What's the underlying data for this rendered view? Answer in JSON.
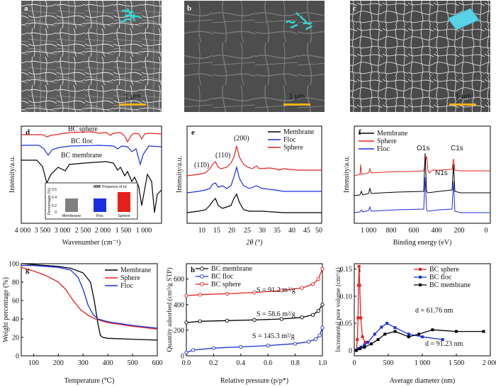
{
  "figure": {
    "panels": {
      "a": {
        "letter": "a",
        "scale_bar": "1 μm"
      },
      "b": {
        "letter": "b",
        "scale_bar": "1 μm"
      },
      "c": {
        "letter": "c",
        "scale_bar": "1 μm"
      }
    }
  },
  "chart_data": [
    {
      "panel": "d",
      "type": "line",
      "xlabel": "Wavenumber (cm⁻¹)",
      "ylabel": "Intensity/a.u.",
      "xlim": [
        4000,
        600
      ],
      "reversed_x": true,
      "x_ticks": [
        "4 000",
        "3 500",
        "3 000",
        "2 500",
        "2 000",
        "1 500",
        "1 000"
      ],
      "series": [
        {
          "name": "BC sphere",
          "color": "#e8201c"
        },
        {
          "name": "BC floc",
          "color": "#1a2fe0"
        },
        {
          "name": "BC membrane",
          "color": "#000000"
        }
      ],
      "inset": {
        "type": "bar",
        "title": "Properos of Iα",
        "ylabel": "Percentage (%)",
        "ylim": [
          0,
          0.6
        ],
        "y_ticks": [
          "0",
          "0.2",
          "0.4",
          "0.6"
        ],
        "categories": [
          "Membrane",
          "Floc",
          "Sphere"
        ],
        "values": [
          0.42,
          0.42,
          0.58
        ],
        "colors": [
          "#808080",
          "#1a2fe0",
          "#e8201c"
        ]
      }
    },
    {
      "panel": "e",
      "type": "line",
      "xlabel": "2θ (°)",
      "ylabel": "Intensity/a.u.",
      "xlim": [
        5,
        50
      ],
      "x_ticks": [
        "10",
        "15",
        "20",
        "25",
        "30",
        "35",
        "40",
        "45",
        "50"
      ],
      "annotations": [
        "(11̄0)",
        "(110)",
        "(200)"
      ],
      "series": [
        {
          "name": "Membrane",
          "color": "#000000"
        },
        {
          "name": "Floc",
          "color": "#1a2fe0"
        },
        {
          "name": "Sphere",
          "color": "#e8201c"
        }
      ]
    },
    {
      "panel": "f",
      "type": "line",
      "xlabel": "Binding energy (eV)",
      "ylabel": "Intensity/a.u.",
      "xlim": [
        1200,
        0
      ],
      "reversed_x": true,
      "x_ticks": [
        "1 000",
        "800",
        "600",
        "400",
        "200",
        "0"
      ],
      "annotations": [
        "O1s",
        "N1s",
        "C1s"
      ],
      "series": [
        {
          "name": "Membrane",
          "color": "#000000"
        },
        {
          "name": "Sphere",
          "color": "#e8201c"
        },
        {
          "name": "Floc",
          "color": "#1a2fe0"
        }
      ]
    },
    {
      "panel": "g",
      "type": "line",
      "xlabel": "Temperature (℃)",
      "ylabel": "Weight percentage (%)",
      "xlim": [
        50,
        600
      ],
      "ylim": [
        0,
        100
      ],
      "x_ticks": [
        "100",
        "200",
        "300",
        "400",
        "500",
        "600"
      ],
      "y_ticks": [
        "0",
        "20",
        "40",
        "60",
        "80",
        "100"
      ],
      "series": [
        {
          "name": "Membrane",
          "color": "#000000",
          "x": [
            50,
            100,
            200,
            250,
            300,
            330,
            345,
            360,
            370,
            380,
            400,
            500,
            600
          ],
          "y": [
            100,
            99,
            97,
            95,
            90,
            80,
            60,
            35,
            22,
            20,
            19,
            18,
            17
          ]
        },
        {
          "name": "Sphere",
          "color": "#e8201c",
          "x": [
            50,
            100,
            150,
            200,
            230,
            260,
            290,
            320,
            350,
            400,
            500,
            600
          ],
          "y": [
            96,
            92,
            87,
            80,
            72,
            60,
            50,
            44,
            40,
            36,
            32,
            29
          ]
        },
        {
          "name": "Floc",
          "color": "#1a2fe0",
          "x": [
            50,
            100,
            200,
            250,
            280,
            300,
            320,
            340,
            360,
            400,
            500,
            600
          ],
          "y": [
            98,
            98,
            96,
            93,
            85,
            72,
            55,
            45,
            40,
            37,
            33,
            30
          ]
        }
      ]
    },
    {
      "panel": "h",
      "type": "line",
      "xlabel": "Relative pressure (p/p*)",
      "ylabel": "Quantity adsorbed (cm³/g STP)",
      "xlim": [
        0,
        1
      ],
      "ylim": [
        0,
        720
      ],
      "x_ticks": [
        "0.0",
        "0.2",
        "0.4",
        "0.6",
        "0.8",
        "1.0"
      ],
      "y_ticks": [
        "0",
        "200",
        "400",
        "600"
      ],
      "annotations": [
        "S = 91.2 m²/g",
        "S = 58.6 m²/g",
        "S = 145.3 m²/g"
      ],
      "series": [
        {
          "name": "BC membrane",
          "color": "#000000",
          "x": [
            0.0,
            0.1,
            0.3,
            0.5,
            0.7,
            0.85,
            0.93,
            0.97,
            1.0
          ],
          "y": [
            260,
            270,
            275,
            280,
            288,
            300,
            320,
            350,
            400
          ]
        },
        {
          "name": "BC floc",
          "color": "#1a2fe0",
          "x": [
            0.0,
            0.05,
            0.2,
            0.4,
            0.6,
            0.8,
            0.9,
            0.95,
            0.98,
            1.0
          ],
          "y": [
            25,
            45,
            60,
            70,
            80,
            95,
            110,
            130,
            160,
            220
          ]
        },
        {
          "name": "BC sphere",
          "color": "#e8201c",
          "x": [
            0.0,
            0.1,
            0.3,
            0.5,
            0.7,
            0.85,
            0.93,
            0.97,
            1.0
          ],
          "y": [
            470,
            478,
            485,
            495,
            510,
            530,
            560,
            600,
            680
          ]
        }
      ]
    },
    {
      "panel": "i",
      "type": "line",
      "xlabel": "Average diameter (nm)",
      "ylabel": "Incremental pore volume (cm³/g)",
      "xlim": [
        0,
        2000
      ],
      "ylim": [
        -0.01,
        0.16
      ],
      "x_ticks": [
        "0",
        "500",
        "1 000",
        "1 500",
        "2 000"
      ],
      "y_ticks": [
        "0",
        "0.05",
        "0.10",
        "0.15"
      ],
      "annotations": [
        "d = 61.76 nm",
        "d = 91.23 nm"
      ],
      "series": [
        {
          "name": "BC sphere",
          "color": "#e8201c",
          "x": [
            30,
            45,
            55,
            62,
            70,
            80,
            95,
            120,
            160
          ],
          "y": [
            0.0,
            0.02,
            0.06,
            0.12,
            0.155,
            0.12,
            0.06,
            0.025,
            0.015
          ]
        },
        {
          "name": "BC floc",
          "color": "#1a2fe0",
          "x": [
            30,
            60,
            100,
            150,
            200,
            300,
            400,
            480,
            600,
            800,
            1000,
            1300
          ],
          "y": [
            0.0,
            0.003,
            0.006,
            0.01,
            0.015,
            0.03,
            0.043,
            0.05,
            0.042,
            0.03,
            0.025,
            0.02
          ]
        },
        {
          "name": "BC membrane",
          "color": "#000000",
          "x": [
            30,
            80,
            150,
            250,
            350,
            450,
            600,
            800,
            950,
            1150,
            1500,
            1900
          ],
          "y": [
            0.0,
            0.003,
            0.006,
            0.012,
            0.02,
            0.03,
            0.035,
            0.025,
            0.03,
            0.038,
            0.035,
            0.035
          ]
        }
      ]
    }
  ]
}
